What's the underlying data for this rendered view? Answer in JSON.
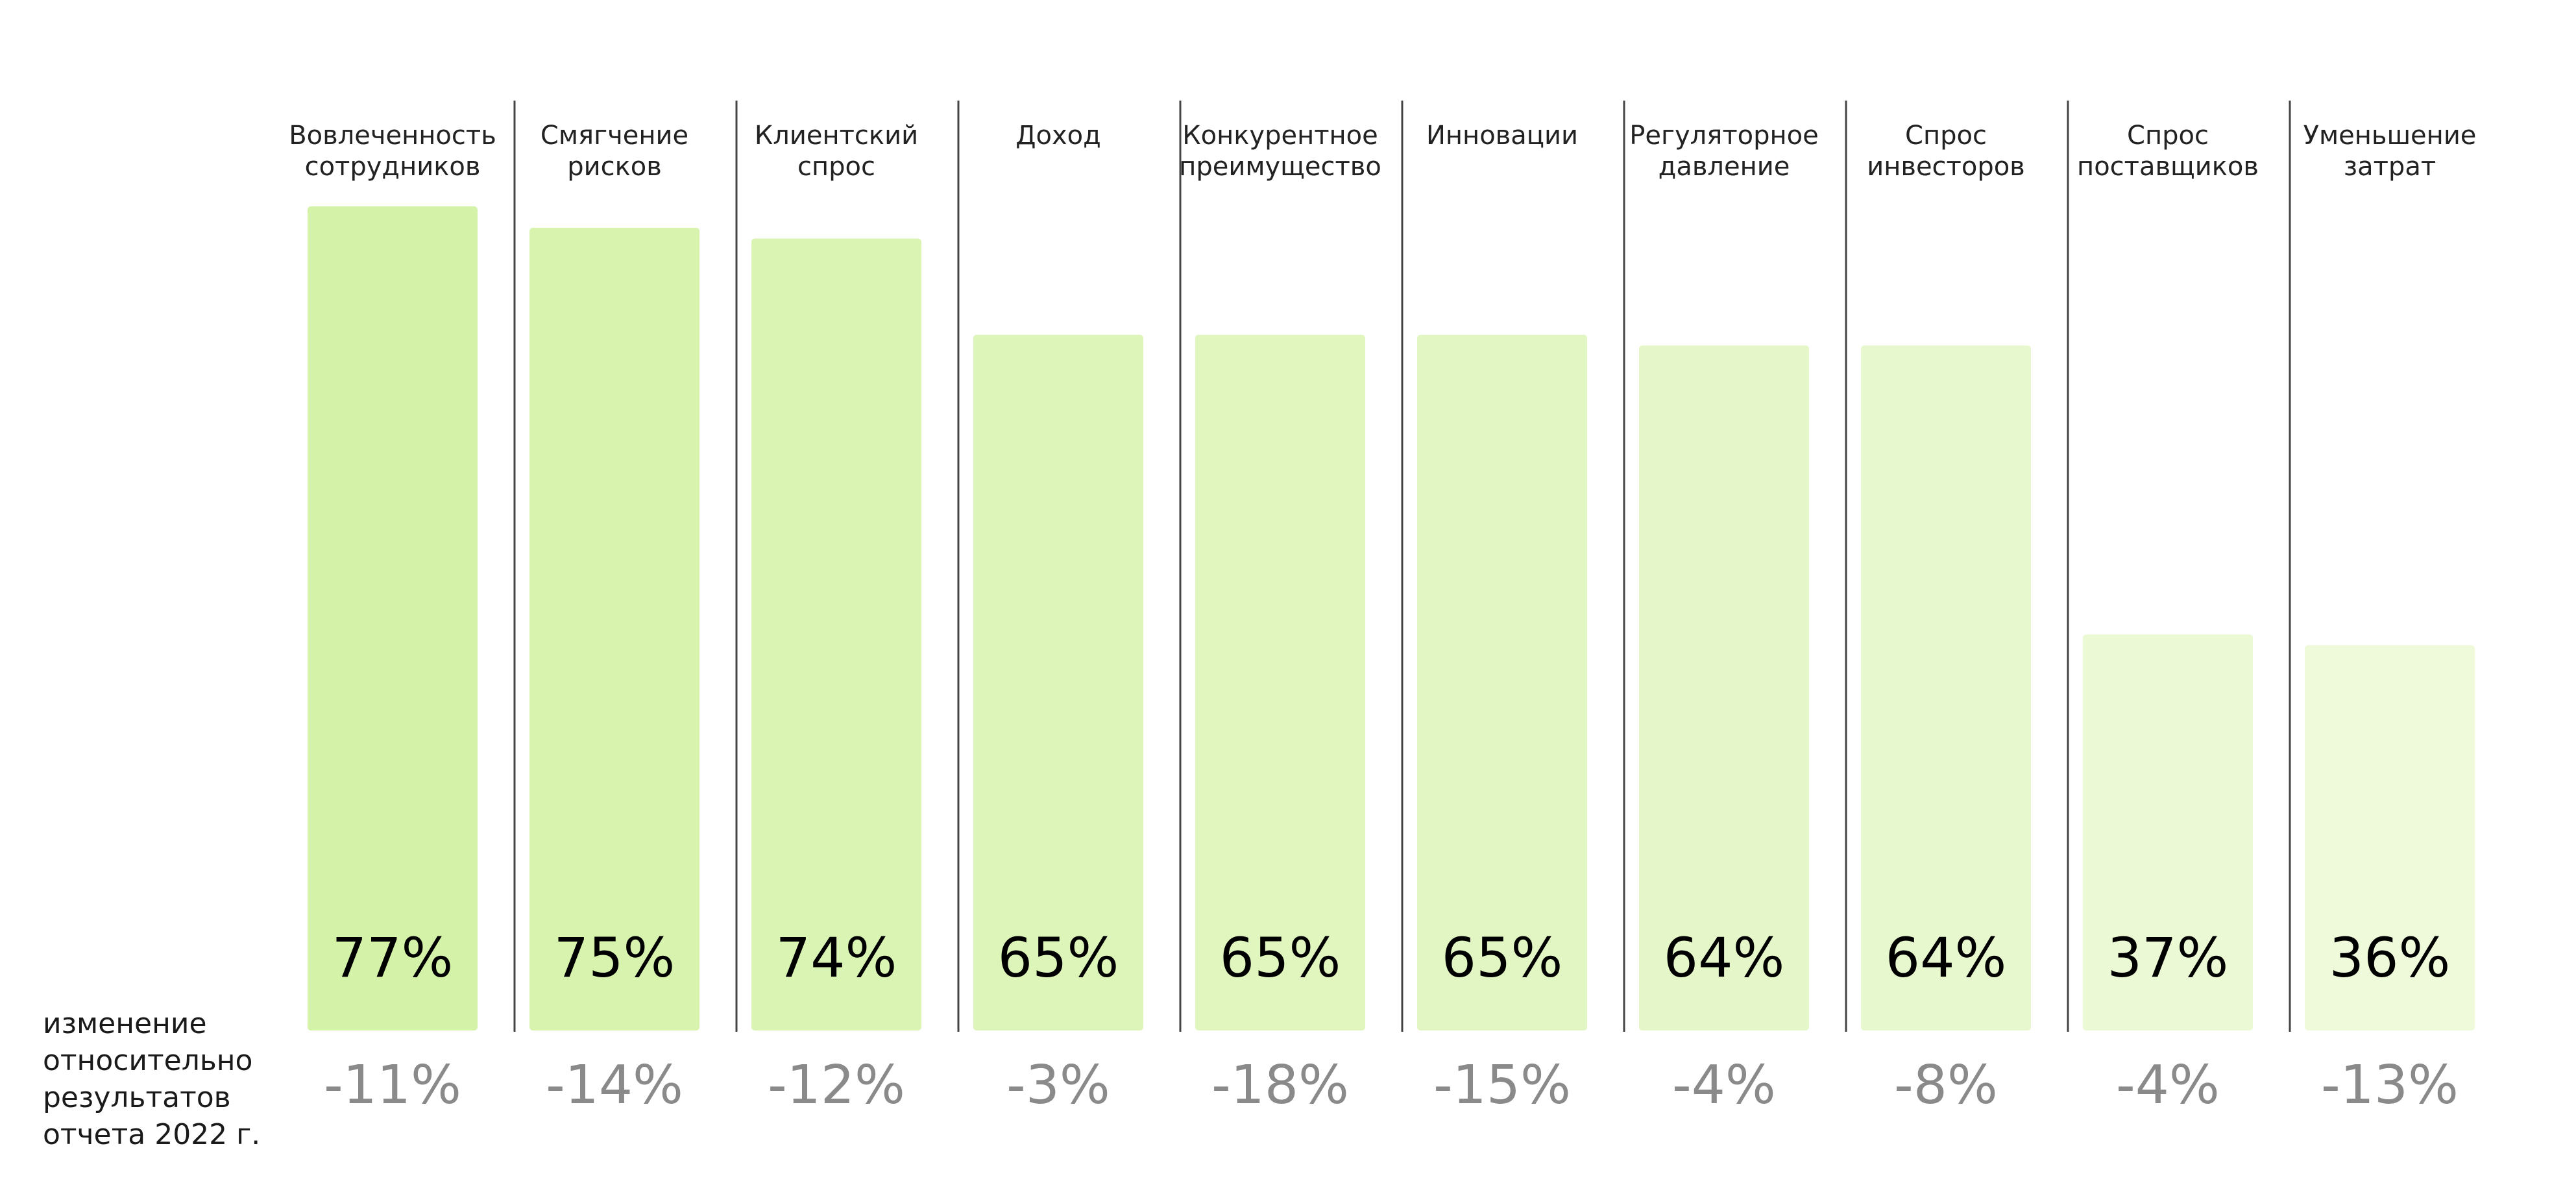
{
  "chart_data": {
    "type": "bar",
    "categories": [
      [
        "Вовлеченность",
        "сотрудников"
      ],
      [
        "Смягчение",
        "рисков"
      ],
      [
        "Клиентский",
        "спрос"
      ],
      [
        "Доход"
      ],
      [
        "Конкурентное",
        "преимущество"
      ],
      [
        "Инновации"
      ],
      [
        "Регуляторное",
        "давление"
      ],
      [
        "Спрос",
        "инвесторов"
      ],
      [
        "Спрос",
        "поставщиков"
      ],
      [
        "Уменьшение",
        "затрат"
      ]
    ],
    "values": [
      77,
      75,
      74,
      65,
      65,
      65,
      64,
      64,
      37,
      36
    ],
    "value_labels": [
      "77%",
      "75%",
      "74%",
      "65%",
      "65%",
      "65%",
      "64%",
      "64%",
      "37%",
      "36%"
    ],
    "changes": [
      "-11%",
      "-14%",
      "-12%",
      "-3%",
      "-18%",
      "-15%",
      "-4%",
      "-8%",
      "-4%",
      "-13%"
    ],
    "change_label": [
      "изменение",
      "относительно",
      "результатов",
      "отчета 2022 г."
    ],
    "ylim": [
      0,
      77
    ],
    "grid": false,
    "colors": {
      "bar_start": "#d4f2a8",
      "bar_end": "#eefad9",
      "divider": "#444444",
      "delta": "#8a8a8a"
    }
  }
}
